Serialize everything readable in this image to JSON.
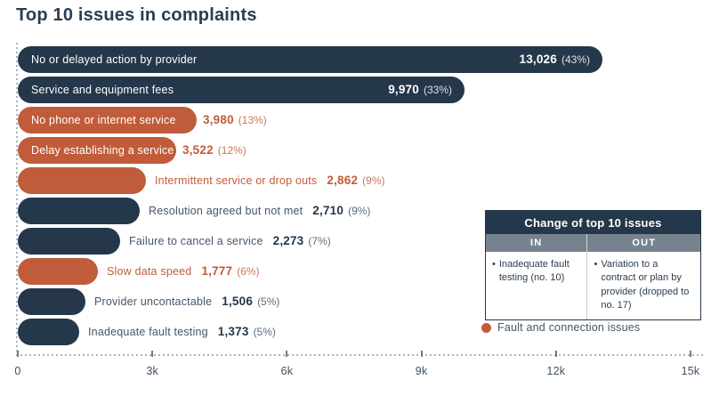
{
  "title": "Top 10 issues in complaints",
  "colors": {
    "navy": "#25374a",
    "orange": "#c05c3a"
  },
  "chart_data": {
    "type": "bar",
    "orientation": "horizontal",
    "title": "Top 10 issues in complaints",
    "x_axis": {
      "ticks": [
        "0",
        "3k",
        "6k",
        "9k",
        "12k",
        "15k"
      ],
      "values": [
        0,
        3000,
        6000,
        9000,
        12000,
        15000
      ],
      "max": 15000,
      "style": "dotted"
    },
    "bars": [
      {
        "label": "No or delayed action by provider",
        "value": 13026,
        "value_display": "13,026",
        "percent": "(43%)",
        "category": "other",
        "label_inside": true,
        "value_inside": true
      },
      {
        "label": "Service and equipment fees",
        "value": 9970,
        "value_display": "9,970",
        "percent": "(33%)",
        "category": "other",
        "label_inside": true,
        "value_inside": true
      },
      {
        "label": "No phone or internet service",
        "value": 3980,
        "value_display": "3,980",
        "percent": "(13%)",
        "category": "fault",
        "label_inside": true,
        "value_inside": false
      },
      {
        "label": "Delay establishing a service",
        "value": 3522,
        "value_display": "3,522",
        "percent": "(12%)",
        "category": "fault",
        "label_inside": true,
        "value_inside": false
      },
      {
        "label": "Intermittent service or drop outs",
        "value": 2862,
        "value_display": "2,862",
        "percent": "(9%)",
        "category": "fault",
        "label_inside": false,
        "value_inside": false
      },
      {
        "label": "Resolution agreed but not met",
        "value": 2710,
        "value_display": "2,710",
        "percent": "(9%)",
        "category": "other",
        "label_inside": false,
        "value_inside": false
      },
      {
        "label": "Failure to cancel a service",
        "value": 2273,
        "value_display": "2,273",
        "percent": "(7%)",
        "category": "other",
        "label_inside": false,
        "value_inside": false
      },
      {
        "label": "Slow data speed",
        "value": 1777,
        "value_display": "1,777",
        "percent": "(6%)",
        "category": "fault",
        "label_inside": false,
        "value_inside": false
      },
      {
        "label": "Provider uncontactable",
        "value": 1506,
        "value_display": "1,506",
        "percent": "(5%)",
        "category": "other",
        "label_inside": false,
        "value_inside": false
      },
      {
        "label": "Inadequate fault testing",
        "value": 1373,
        "value_display": "1,373",
        "percent": "(5%)",
        "category": "other",
        "label_inside": false,
        "value_inside": false
      }
    ],
    "legend": {
      "label": "Fault and connection issues",
      "color": "#c05c3a",
      "position": "bottom-right"
    }
  },
  "change_table": {
    "title": "Change of top 10 issues",
    "columns": [
      "IN",
      "OUT"
    ],
    "in_items": [
      "Inadequate fault testing (no. 10)"
    ],
    "out_items": [
      "Variation to a contract or plan by provider (dropped to no. 17)"
    ]
  }
}
